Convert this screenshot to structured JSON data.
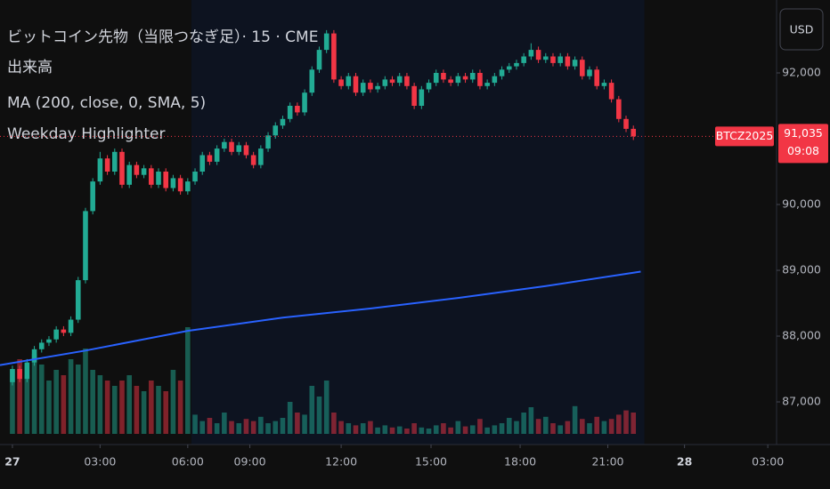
{
  "chart_data": {
    "type": "candlestick",
    "title": "ビットコイン先物（当限つなぎ足）· 15 · CME",
    "indicators": [
      "出来高",
      "MA (200, close, 0, SMA, 5)",
      "Weekday Highlighter"
    ],
    "currency": "USD",
    "symbol": "BTCZ2025",
    "last_price": {
      "value": 91035,
      "label": "91,035"
    },
    "countdown": "09:08",
    "ylim": [
      86514,
      93108
    ],
    "yticks": [
      {
        "value": 92000,
        "label": "92,000"
      },
      {
        "value": 90000,
        "label": "90,000"
      },
      {
        "value": 89000,
        "label": "89,000"
      },
      {
        "value": 88000,
        "label": "88,000"
      },
      {
        "value": 87000,
        "label": "87,000"
      }
    ],
    "xlim": [
      -1.7,
      104.6
    ],
    "xticks": [
      {
        "value": 0,
        "label": "27"
      },
      {
        "value": 12,
        "label": "03:00"
      },
      {
        "value": 24,
        "label": "06:00"
      },
      {
        "value": 32.5,
        "label": "09:00"
      },
      {
        "value": 45,
        "label": "12:00"
      },
      {
        "value": 57.3,
        "label": "15:00"
      },
      {
        "value": 69.5,
        "label": "18:00"
      },
      {
        "value": 81.5,
        "label": "21:00"
      },
      {
        "value": 92,
        "label": "28"
      },
      {
        "value": 103.4,
        "label": "03:00"
      }
    ],
    "highlight_range": [
      24.5,
      86.5
    ],
    "up_color": "#22ab94",
    "down_color": "#f23645",
    "open": [
      87300,
      87500,
      87350,
      87600,
      87800,
      87900,
      87950,
      88100,
      88050,
      88250,
      88850,
      89900,
      90350,
      90700,
      90500,
      90800,
      90300,
      90600,
      90450,
      90550,
      90300,
      90500,
      90250,
      90400,
      90200,
      90350,
      90500,
      90750,
      90650,
      90850,
      90950,
      90800,
      90900,
      90750,
      90600,
      90850,
      91050,
      91200,
      91300,
      91500,
      91400,
      91700,
      92050,
      92350,
      92600,
      91900,
      91800,
      91950,
      91700,
      91850,
      91750,
      91800,
      91900,
      91850,
      91950,
      91800,
      91500,
      91750,
      91850,
      92000,
      91900,
      91850,
      91950,
      91900,
      92000,
      91800,
      91850,
      91950,
      92050,
      92100,
      92150,
      92250,
      92350,
      92200,
      92250,
      92150,
      92250,
      92100,
      92200,
      91950,
      92050,
      91800,
      91850,
      91600,
      91300,
      91150
    ],
    "high": [
      87550,
      87550,
      87650,
      87850,
      87950,
      88000,
      88150,
      88150,
      88300,
      88900,
      89950,
      90400,
      90800,
      90750,
      90850,
      90850,
      90650,
      90650,
      90600,
      90600,
      90550,
      90550,
      90450,
      90450,
      90400,
      90550,
      90800,
      90800,
      90900,
      91000,
      91000,
      90950,
      90950,
      90800,
      90900,
      91100,
      91250,
      91350,
      91550,
      91550,
      91750,
      92100,
      92400,
      92650,
      92650,
      91950,
      92000,
      92000,
      91900,
      91900,
      91850,
      91950,
      91950,
      92000,
      92000,
      91850,
      91800,
      91900,
      92050,
      92050,
      91950,
      92000,
      92000,
      92050,
      92050,
      91900,
      92000,
      92100,
      92150,
      92200,
      92300,
      92450,
      92400,
      92300,
      92300,
      92300,
      92300,
      92250,
      92250,
      92100,
      92100,
      91900,
      91900,
      91650,
      91350,
      91200
    ],
    "low": [
      87250,
      87300,
      87300,
      87550,
      87750,
      87850,
      87900,
      88000,
      88000,
      88200,
      88800,
      89850,
      90300,
      90450,
      90450,
      90250,
      90250,
      90400,
      90400,
      90250,
      90250,
      90200,
      90200,
      90150,
      90150,
      90300,
      90450,
      90600,
      90600,
      90800,
      90750,
      90750,
      90700,
      90550,
      90550,
      90800,
      91000,
      91150,
      91250,
      91350,
      91350,
      91650,
      92000,
      92300,
      91850,
      91750,
      91750,
      91650,
      91650,
      91700,
      91700,
      91750,
      91800,
      91800,
      91750,
      91450,
      91450,
      91700,
      91800,
      91850,
      91800,
      91800,
      91850,
      91850,
      91750,
      91750,
      91800,
      91900,
      92000,
      92050,
      92100,
      92200,
      92150,
      92150,
      92100,
      92100,
      92050,
      92050,
      91900,
      91900,
      91750,
      91750,
      91550,
      91250,
      91100,
      90980
    ],
    "close": [
      87500,
      87350,
      87600,
      87800,
      87900,
      87950,
      88100,
      88050,
      88250,
      88850,
      89900,
      90350,
      90700,
      90500,
      90800,
      90300,
      90600,
      90450,
      90550,
      90300,
      90500,
      90250,
      90400,
      90200,
      90350,
      90500,
      90750,
      90650,
      90850,
      90950,
      90800,
      90900,
      90750,
      90600,
      90850,
      91050,
      91200,
      91300,
      91500,
      91400,
      91700,
      92050,
      92350,
      92600,
      91900,
      91800,
      91950,
      91700,
      91850,
      91750,
      91800,
      91900,
      91850,
      91950,
      91800,
      91500,
      91750,
      91850,
      92000,
      91900,
      91850,
      91950,
      91900,
      92000,
      91800,
      91850,
      91950,
      92050,
      92100,
      92150,
      92250,
      92350,
      92200,
      92250,
      92150,
      92250,
      92100,
      92200,
      91950,
      92050,
      91800,
      91850,
      91600,
      91300,
      91150,
      91035
    ],
    "volume_ylim": [
      0,
      100
    ],
    "volume": [
      60,
      70,
      55,
      75,
      65,
      50,
      60,
      55,
      70,
      65,
      80,
      60,
      55,
      50,
      45,
      50,
      55,
      45,
      40,
      50,
      45,
      40,
      60,
      50,
      100,
      18,
      12,
      15,
      10,
      20,
      12,
      10,
      14,
      12,
      16,
      10,
      12,
      15,
      30,
      20,
      18,
      45,
      35,
      50,
      20,
      12,
      10,
      8,
      10,
      12,
      6,
      8,
      6,
      7,
      5,
      10,
      6,
      5,
      8,
      10,
      6,
      12,
      7,
      8,
      14,
      6,
      8,
      10,
      15,
      12,
      20,
      25,
      14,
      16,
      10,
      8,
      12,
      26,
      14,
      10,
      16,
      12,
      14,
      18,
      22,
      20
    ],
    "ma": {
      "color": "#2962ff",
      "x": [
        -1.7,
        10,
        24,
        37,
        49,
        61,
        73,
        86
      ],
      "values": [
        87560,
        87780,
        88080,
        88280,
        88420,
        88580,
        88760,
        88980
      ]
    }
  }
}
